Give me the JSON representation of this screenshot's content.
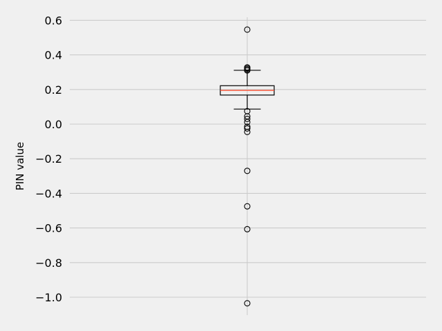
{
  "chart_data": {
    "type": "boxplot",
    "title": "",
    "xlabel": "",
    "ylabel": "PIN value",
    "ylim": [
      -1.11,
      0.62
    ],
    "yticks": [
      0.6,
      0.4,
      0.2,
      0.0,
      -0.2,
      -0.4,
      -0.6,
      -0.8,
      -1.0
    ],
    "ytick_labels": [
      "0.6",
      "0.4",
      "0.2",
      "0.0",
      "−0.2",
      "−0.4",
      "−0.6",
      "−0.8",
      "−1.0"
    ],
    "grid": true,
    "series": [
      {
        "q1": 0.168,
        "median": 0.195,
        "q3": 0.222,
        "whisker_low": 0.087,
        "whisker_high": 0.311,
        "outliers": [
          0.546,
          0.328,
          0.322,
          0.316,
          0.31,
          0.075,
          0.045,
          0.03,
          0.012,
          -0.015,
          -0.025,
          -0.045,
          -0.27,
          -0.475,
          -0.607,
          -1.035
        ]
      }
    ],
    "colors": {
      "background": "#f0f0f0",
      "grid": "#cbcbcb",
      "box": "#000000",
      "median": "#fc4f30"
    }
  }
}
